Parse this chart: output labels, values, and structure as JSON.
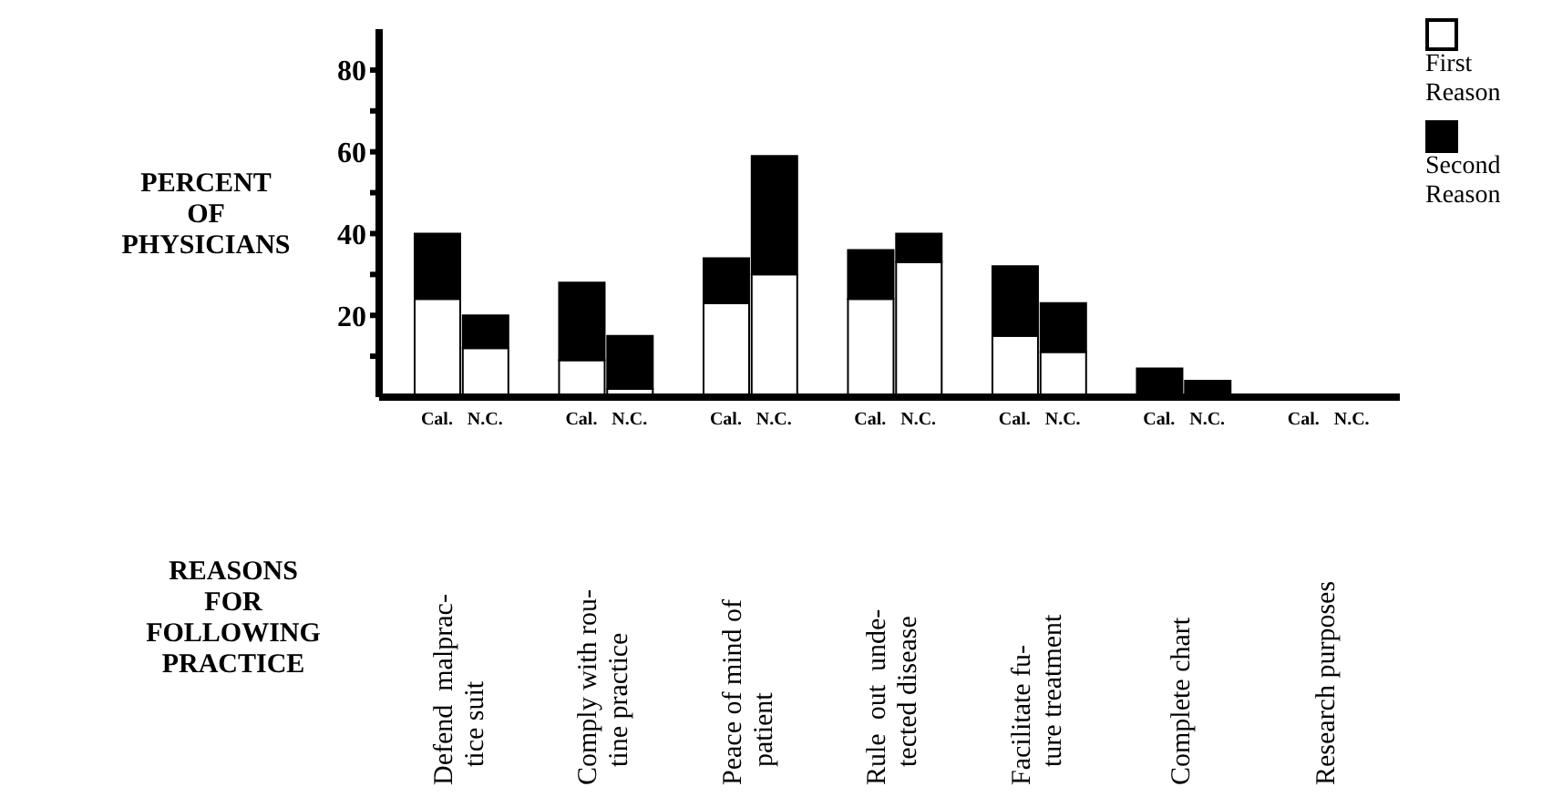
{
  "chart_data": {
    "type": "bar",
    "stacked": true,
    "ylabel": "PERCENT\nOF\nPHYSICIANS",
    "xlabel": "REASONS\nFOR\nFOLLOWING\nPRACTICE",
    "categories": [
      "Cal.",
      "N.C.",
      "Cal.",
      "N.C.",
      "Cal.",
      "N.C.",
      "Cal.",
      "N.C.",
      "Cal.",
      "N.C.",
      "Cal.",
      "N.C.",
      "Cal.",
      "N.C."
    ],
    "series": [
      {
        "name": "First Reason",
        "color": "#ffffff",
        "values": [
          24,
          12,
          9,
          2,
          23,
          30,
          24,
          33,
          15,
          11,
          0,
          0,
          0,
          0
        ]
      },
      {
        "name": "Second Reason",
        "color": "#000000",
        "values": [
          16,
          8,
          19,
          13,
          11,
          29,
          12,
          7,
          17,
          12,
          7,
          4,
          0,
          0
        ]
      }
    ],
    "ylim": [
      0,
      90
    ],
    "yticks": [
      {
        "value": 10,
        "label": null
      },
      20,
      {
        "value": 30,
        "label": null
      },
      40,
      {
        "value": 50,
        "label": null
      },
      60,
      {
        "value": 70,
        "label": null
      },
      80
    ],
    "annotations": [
      "Defend  malprac-\ntice suit",
      "Comply with rou-\ntine practice",
      "Peace of mind of\npatient",
      "Rule  out  unde-\ntected disease",
      "Facilitate fu-\nture treatment",
      "Complete chart",
      "Research purposes"
    ],
    "legend": "right",
    "grid": false
  }
}
